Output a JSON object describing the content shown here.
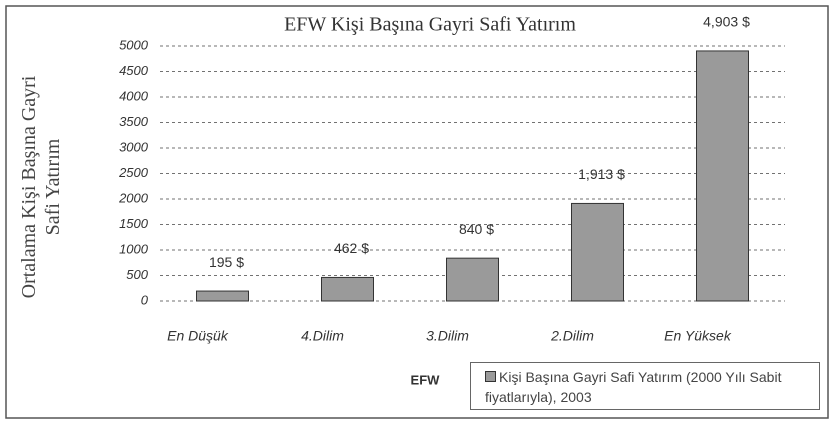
{
  "chart_data": {
    "type": "bar",
    "title": "EFW Kişi Başına Gayri Safi Yatırım",
    "y_label": "Ortalama Kişi Başına Gayri Safi Yatırım",
    "x_label": "EFW",
    "categories": [
      "En Düşük",
      "4.Dilim",
      "3.Dilim",
      "2.Dilim",
      "En Yüksek"
    ],
    "series": [
      {
        "name": "Kişi Başına Gayri Safi Yatırım (2000 Yılı Sabit fiyatlarıyla), 2003",
        "color": "#9a9a9a",
        "values": [
          195,
          462,
          840,
          1913,
          4903
        ],
        "value_labels": [
          "195 $",
          "462 $",
          "840 $",
          "1,913 $",
          "4,903 $"
        ]
      }
    ],
    "ylim": [
      0,
      5000
    ],
    "yticks": [
      0,
      500,
      1000,
      1500,
      2000,
      2500,
      3000,
      3500,
      4000,
      4500,
      5000
    ],
    "grid": true
  }
}
